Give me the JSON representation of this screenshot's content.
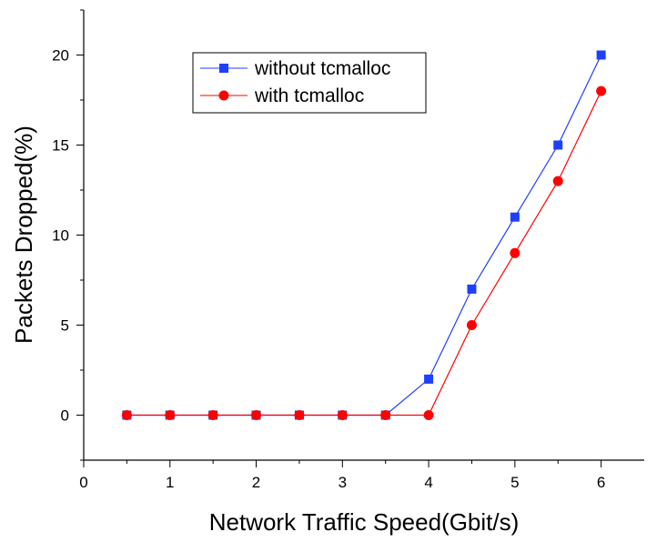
{
  "chart_data": {
    "type": "line",
    "xlabel": "Network Traffic Speed(Gbit/s)",
    "ylabel": "Packets Dropped(%)",
    "xlim": [
      0,
      6.5
    ],
    "ylim": [
      -2.5,
      22.5
    ],
    "xticks": [
      "0",
      "1",
      "2",
      "3",
      "4",
      "5",
      "6"
    ],
    "yticks": [
      "0",
      "5",
      "10",
      "15",
      "20"
    ],
    "grid": false,
    "legend_position": "top-center",
    "series": [
      {
        "name": "without tcmalloc",
        "color": "#1f3fff",
        "marker": "square",
        "x": [
          0.5,
          1,
          1.5,
          2,
          2.5,
          3,
          3.5,
          4,
          4.5,
          5,
          5.5,
          6
        ],
        "y": [
          0,
          0,
          0,
          0,
          0,
          0,
          0,
          2,
          7,
          11,
          15,
          20
        ]
      },
      {
        "name": "with tcmalloc",
        "color": "#ff0000",
        "marker": "circle",
        "x": [
          0.5,
          1,
          1.5,
          2,
          2.5,
          3,
          3.5,
          4,
          4.5,
          5,
          5.5,
          6
        ],
        "y": [
          0,
          0,
          0,
          0,
          0,
          0,
          0,
          0,
          5,
          9,
          13,
          18
        ]
      }
    ]
  }
}
